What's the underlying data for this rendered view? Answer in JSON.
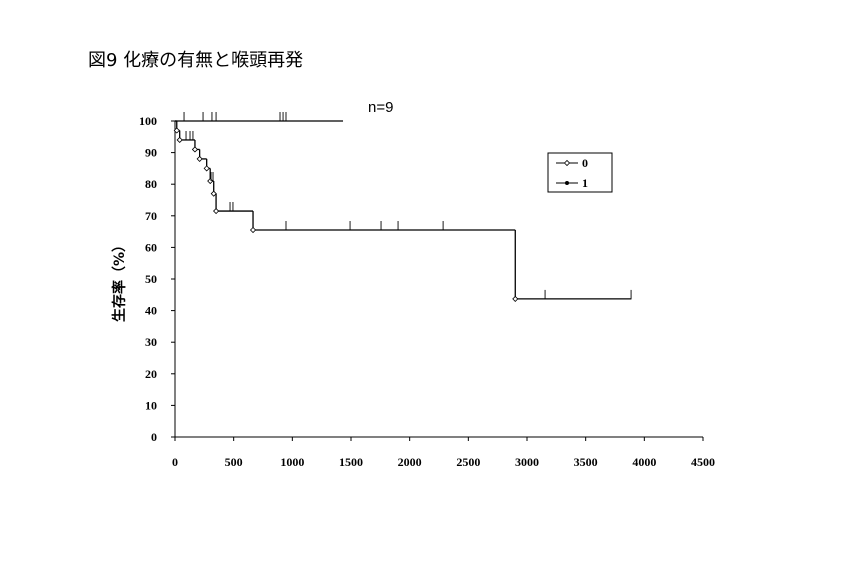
{
  "chart_data": {
    "type": "step",
    "title": "図9  化療の有無と喉頭再発",
    "annotation": "n=9",
    "y_label": "生存率（%）",
    "xlim": [
      0,
      4500
    ],
    "ylim": [
      0,
      100
    ],
    "xticks": [
      0,
      500,
      1000,
      1500,
      2000,
      2500,
      3000,
      3500,
      4000,
      4500
    ],
    "yticks": [
      0,
      10,
      20,
      30,
      40,
      50,
      60,
      70,
      80,
      90,
      100
    ],
    "legend": "right",
    "series": [
      {
        "name": "0",
        "color": "#000000",
        "marker": "open",
        "x": [
          0,
          15,
          40,
          170,
          210,
          270,
          300,
          330,
          350,
          665,
          2900,
          3890
        ],
        "values": [
          100,
          97,
          94,
          91,
          88,
          85,
          81,
          77,
          71.5,
          65.5,
          43.7,
          43.7
        ],
        "censor_x": [
          94,
          128,
          153,
          307,
          324,
          469,
          494,
          946,
          1492,
          1756,
          1901,
          2285,
          3154,
          3887
        ]
      },
      {
        "name": "1",
        "color": "#000000",
        "marker": "filled",
        "x": [
          0,
          1432
        ],
        "values": [
          100,
          100
        ],
        "censor_x": [
          77,
          239,
          315,
          350,
          895,
          921,
          946
        ]
      }
    ]
  }
}
